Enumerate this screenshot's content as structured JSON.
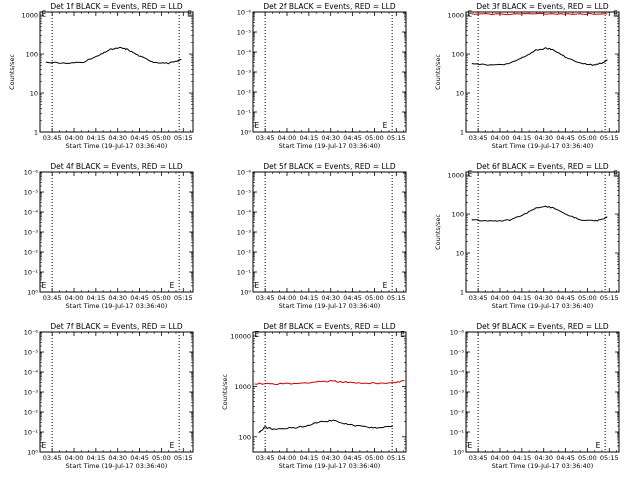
{
  "chart_data": [
    {
      "type": "line",
      "title": "Det 1f BLACK = Events, RED = LLD",
      "xlabel": "Start Time (19-Jul-17 03:36:40)",
      "ylabel": "Counts/sec",
      "x_ticks": [
        "03:45",
        "04:00",
        "04:15",
        "04:30",
        "04:45",
        "05:00",
        "05:15"
      ],
      "y_scale": "log",
      "y_ticks": [
        "1",
        "10",
        "100",
        "1000"
      ],
      "ylim": [
        1,
        1200
      ],
      "xlim_min": [
        0,
        105
      ],
      "vlines_min": [
        8.33,
        95.5
      ],
      "marker": "E",
      "marker_pos": [
        [
          1,
          1100
        ],
        [
          101,
          1100
        ]
      ],
      "series": [
        {
          "color": "#000000",
          "x_min": [
            4,
            10,
            20,
            30,
            40,
            48,
            55,
            60,
            68,
            78,
            88,
            94,
            97
          ],
          "y": [
            62,
            60,
            58,
            63,
            90,
            130,
            145,
            132,
            90,
            62,
            58,
            65,
            75
          ]
        }
      ]
    },
    {
      "type": "line",
      "title": "Det 2f BLACK = Events, RED = LLD",
      "xlabel": "Start Time (19-Jul-17 03:36:40)",
      "ylabel": "",
      "x_ticks": [
        "03:45",
        "04:00",
        "04:15",
        "04:30",
        "04:45",
        "05:00",
        "05:15"
      ],
      "y_scale": "log",
      "y_ticks": [
        "10⁰",
        "10⁻¹",
        "10⁻²",
        "10⁻³",
        "10⁻⁴",
        "10⁻⁵",
        "10⁻⁶"
      ],
      "ylim": [
        1e-06,
        1
      ],
      "xlim_min": [
        0,
        105
      ],
      "vlines_min": [
        8.33,
        95.5
      ],
      "marker": "E",
      "marker_pos": [
        [
          1,
          2e-06
        ],
        [
          89,
          2e-06
        ]
      ],
      "series": []
    },
    {
      "type": "line",
      "title": "Det 3f BLACK = Events, RED = LLD",
      "xlabel": "Start Time (19-Jul-17 03:36:40)",
      "ylabel": "Counts/sec",
      "x_ticks": [
        "03:45",
        "04:00",
        "04:15",
        "04:30",
        "04:45",
        "05:00",
        "05:15"
      ],
      "y_scale": "log",
      "y_ticks": [
        "1",
        "10",
        "100",
        "1000"
      ],
      "ylim": [
        1,
        1200
      ],
      "xlim_min": [
        0,
        105
      ],
      "vlines_min": [
        8.33,
        95.5
      ],
      "marker": "E",
      "marker_pos": [
        [
          1,
          1100
        ],
        [
          101,
          1100
        ]
      ],
      "series": [
        {
          "color": "#cc0000",
          "x_min": [
            4,
            20,
            40,
            60,
            80,
            97
          ],
          "y": [
            1050,
            1060,
            1070,
            1080,
            1070,
            1075
          ]
        },
        {
          "color": "#000000",
          "x_min": [
            4,
            10,
            20,
            30,
            40,
            48,
            55,
            60,
            68,
            78,
            88,
            94,
            97
          ],
          "y": [
            58,
            55,
            52,
            57,
            85,
            125,
            140,
            128,
            85,
            58,
            52,
            60,
            72
          ]
        }
      ]
    },
    {
      "type": "line",
      "title": "Det 4f BLACK = Events, RED = LLD",
      "xlabel": "Start Time (19-Jul-17 03:36:40)",
      "ylabel": "",
      "x_ticks": [
        "03:45",
        "04:00",
        "04:15",
        "04:30",
        "04:45",
        "05:00",
        "05:15"
      ],
      "y_scale": "log",
      "y_ticks": [
        "10⁰",
        "10⁻¹",
        "10⁻²",
        "10⁻³",
        "10⁻⁴",
        "10⁻⁵",
        "10⁻⁶"
      ],
      "ylim": [
        1e-06,
        1
      ],
      "xlim_min": [
        0,
        105
      ],
      "vlines_min": [
        8.33,
        95.5
      ],
      "marker": "E",
      "marker_pos": [
        [
          1,
          2e-06
        ],
        [
          89,
          2e-06
        ]
      ],
      "series": []
    },
    {
      "type": "line",
      "title": "Det 5f BLACK = Events, RED = LLD",
      "xlabel": "Start Time (19-Jul-17 03:36:40)",
      "ylabel": "",
      "x_ticks": [
        "03:45",
        "04:00",
        "04:15",
        "04:30",
        "04:45",
        "05:00",
        "05:15"
      ],
      "y_scale": "log",
      "y_ticks": [
        "10⁰",
        "10⁻¹",
        "10⁻²",
        "10⁻³",
        "10⁻⁴",
        "10⁻⁵",
        "10⁻⁶"
      ],
      "ylim": [
        1e-06,
        1
      ],
      "xlim_min": [
        0,
        105
      ],
      "vlines_min": [
        8.33,
        95.5
      ],
      "marker": "E",
      "marker_pos": [
        [
          1,
          2e-06
        ],
        [
          89,
          2e-06
        ]
      ],
      "series": []
    },
    {
      "type": "line",
      "title": "Det 6f BLACK = Events, RED = LLD",
      "xlabel": "Start Time (19-Jul-17 03:36:40)",
      "ylabel": "Counts/sec",
      "x_ticks": [
        "03:45",
        "04:00",
        "04:15",
        "04:30",
        "04:45",
        "05:00",
        "05:15"
      ],
      "y_scale": "log",
      "y_ticks": [
        "1",
        "10",
        "100",
        "1000"
      ],
      "ylim": [
        1,
        1200
      ],
      "xlim_min": [
        0,
        105
      ],
      "vlines_min": [
        8.33,
        95.5
      ],
      "marker": "E",
      "marker_pos": [
        [
          1,
          1100
        ],
        [
          101,
          1100
        ]
      ],
      "series": [
        {
          "color": "#000000",
          "x_min": [
            4,
            10,
            20,
            30,
            40,
            48,
            55,
            60,
            68,
            78,
            88,
            94,
            97
          ],
          "y": [
            72,
            68,
            65,
            70,
            100,
            140,
            155,
            142,
            100,
            72,
            66,
            74,
            85
          ]
        }
      ]
    },
    {
      "type": "line",
      "title": "Det 7f BLACK = Events, RED = LLD",
      "xlabel": "Start Time (19-Jul-17 03:36:40)",
      "ylabel": "",
      "x_ticks": [
        "03:45",
        "04:00",
        "04:15",
        "04:30",
        "04:45",
        "05:00",
        "05:15"
      ],
      "y_scale": "log",
      "y_ticks": [
        "10⁰",
        "10⁻¹",
        "10⁻²",
        "10⁻³",
        "10⁻⁴",
        "10⁻⁵",
        "10⁻⁶"
      ],
      "ylim": [
        1e-06,
        1
      ],
      "xlim_min": [
        0,
        105
      ],
      "vlines_min": [
        8.33,
        95.5
      ],
      "marker": "E",
      "marker_pos": [
        [
          1,
          2e-06
        ],
        [
          89,
          2e-06
        ]
      ],
      "series": []
    },
    {
      "type": "line",
      "title": "Det 8f BLACK = Events, RED = LLD",
      "xlabel": "Start Time (19-Jul-17 03:36:40)",
      "ylabel": "Counts/sec",
      "x_ticks": [
        "03:45",
        "04:00",
        "04:15",
        "04:30",
        "04:45",
        "05:00",
        "05:15"
      ],
      "y_scale": "log",
      "y_ticks": [
        "100",
        "1000",
        "10000"
      ],
      "ylim": [
        50,
        12000
      ],
      "xlim_min": [
        0,
        105
      ],
      "vlines_min": [
        8.33,
        95.5
      ],
      "marker": "E",
      "marker_pos": [
        [
          1,
          11000
        ],
        [
          101,
          11000
        ]
      ],
      "series": [
        {
          "color": "#cc0000",
          "x_min": [
            1,
            15,
            30,
            45,
            55,
            65,
            80,
            95,
            104
          ],
          "y": [
            1150,
            1120,
            1140,
            1250,
            1280,
            1200,
            1150,
            1180,
            1300
          ]
        },
        {
          "color": "#000000",
          "x_min": [
            4,
            8,
            15,
            25,
            35,
            45,
            55,
            65,
            75,
            85,
            96
          ],
          "y": [
            120,
            155,
            140,
            150,
            160,
            200,
            210,
            175,
            160,
            150,
            165
          ]
        }
      ]
    },
    {
      "type": "line",
      "title": "Det 9f BLACK = Events, RED = LLD",
      "xlabel": "Start Time (19-Jul-17 03:36:40)",
      "ylabel": "",
      "x_ticks": [
        "03:45",
        "04:00",
        "04:15",
        "04:30",
        "04:45",
        "05:00",
        "05:15"
      ],
      "y_scale": "log",
      "y_ticks": [
        "10⁰",
        "10⁻¹",
        "10⁻²",
        "10⁻³",
        "10⁻⁴",
        "10⁻⁵",
        "10⁻⁶"
      ],
      "ylim": [
        1e-06,
        1
      ],
      "xlim_min": [
        0,
        105
      ],
      "vlines_min": [
        8.33,
        95.5
      ],
      "marker": "E",
      "marker_pos": [
        [
          1,
          2e-06
        ],
        [
          89,
          2e-06
        ]
      ],
      "series": []
    }
  ]
}
